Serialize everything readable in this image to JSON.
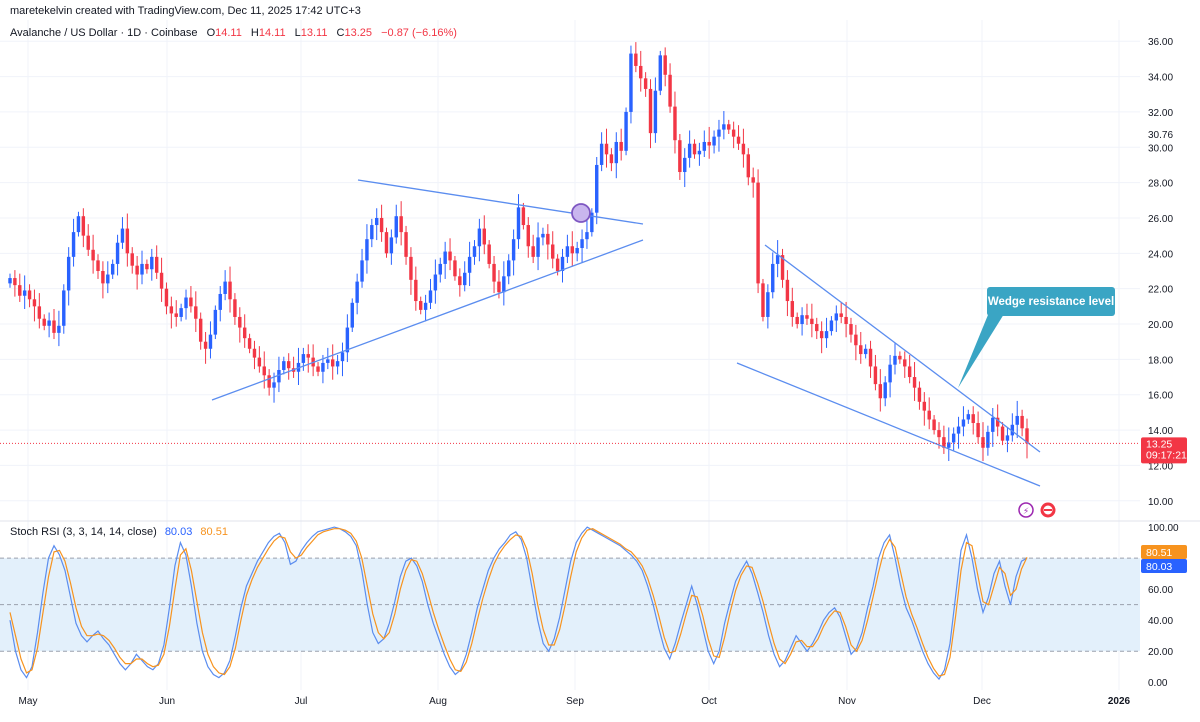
{
  "header": {
    "credit": "maretekelvin created with TradingView.com, Dec 11, 2025 17:42 UTC+3"
  },
  "legend": {
    "symbol": "Avalanche / US Dollar · 1D · Coinbase",
    "o_label": "O",
    "o": "14.11",
    "h_label": "H",
    "h": "14.11",
    "l_label": "L",
    "l": "13.11",
    "c_label": "C",
    "c": "13.25",
    "change": "−0.87 (−6.16%)"
  },
  "price_badge": {
    "price": "13.25",
    "countdown": "09:17:21"
  },
  "annotation": {
    "text": "Wedge resistance level"
  },
  "stoch_legend": {
    "name": "Stoch RSI (3, 3, 14, 14, close)",
    "k": "80.03",
    "d": "80.51"
  },
  "stoch_badges": {
    "d": "80.51",
    "k": "80.03"
  },
  "colors": {
    "up": "#2962ff",
    "down": "#f23645",
    "k_line": "#5b8def",
    "d_line": "#f7931e",
    "trend": "#5b8def",
    "band": "#e3f0fb",
    "callout": "#3aa5c4"
  },
  "chart_data": [
    {
      "type": "candlestick",
      "title": "Avalanche / US Dollar · 1D · Coinbase",
      "x_tick_labels": [
        "May",
        "Jun",
        "Jul",
        "Aug",
        "Sep",
        "Oct",
        "Nov",
        "Dec",
        "2026"
      ],
      "y_tick_labels": [
        "36.00",
        "34.00",
        "32.00",
        "30.76",
        "30.00",
        "28.00",
        "26.00",
        "24.00",
        "22.00",
        "20.00",
        "18.00",
        "16.00",
        "14.00",
        "12.00",
        "10.00"
      ],
      "ylim": [
        8.8,
        37.2
      ],
      "closes": [
        22.6,
        22.2,
        21.6,
        21.9,
        21.4,
        21.0,
        20.3,
        19.9,
        20.2,
        19.5,
        19.9,
        21.9,
        23.8,
        25.2,
        26.1,
        25.0,
        24.2,
        23.6,
        23.0,
        22.3,
        22.8,
        23.4,
        24.6,
        25.4,
        24.0,
        23.3,
        22.8,
        23.4,
        23.1,
        23.8,
        22.9,
        22.0,
        21.0,
        20.6,
        20.4,
        20.9,
        21.5,
        21.0,
        20.3,
        19.0,
        18.6,
        19.4,
        20.8,
        21.7,
        22.4,
        21.4,
        20.4,
        19.8,
        19.2,
        18.6,
        18.1,
        17.6,
        17.1,
        16.4,
        16.7,
        17.4,
        17.9,
        17.5,
        17.3,
        17.8,
        18.3,
        18.1,
        17.6,
        17.3,
        17.8,
        18.0,
        17.6,
        17.9,
        18.4,
        19.8,
        21.2,
        22.4,
        23.6,
        24.8,
        25.6,
        26.0,
        25.2,
        24.0,
        24.9,
        26.1,
        25.2,
        23.8,
        22.5,
        21.3,
        20.8,
        21.2,
        21.9,
        22.8,
        23.4,
        24.1,
        23.6,
        22.7,
        22.2,
        22.9,
        23.8,
        24.4,
        25.4,
        24.5,
        23.4,
        22.4,
        21.8,
        22.7,
        23.6,
        24.8,
        26.6,
        25.6,
        24.4,
        23.8,
        24.9,
        25.1,
        24.5,
        23.7,
        23.0,
        23.8,
        24.4,
        24.0,
        24.3,
        24.8,
        25.2,
        26.3,
        29.0,
        30.2,
        29.6,
        29.1,
        30.3,
        29.8,
        32.0,
        35.3,
        34.6,
        33.9,
        33.3,
        30.8,
        33.2,
        35.2,
        34.1,
        32.3,
        30.4,
        28.6,
        29.4,
        30.2,
        29.6,
        29.8,
        30.3,
        30.1,
        30.6,
        31.0,
        31.3,
        31.0,
        30.6,
        30.2,
        29.6,
        28.3,
        28.0,
        22.3,
        20.4,
        21.8,
        23.4,
        23.9,
        22.5,
        21.3,
        20.4,
        20.0,
        20.5,
        20.3,
        20.0,
        19.6,
        19.2,
        19.6,
        20.2,
        20.6,
        20.4,
        20.0,
        19.4,
        18.8,
        18.3,
        18.6,
        17.6,
        16.6,
        15.8,
        16.7,
        17.7,
        18.2,
        18.0,
        17.6,
        17.0,
        16.4,
        15.6,
        15.1,
        14.6,
        14.0,
        13.6,
        13.0,
        13.3,
        13.8,
        14.2,
        14.6,
        14.9,
        14.4,
        13.6,
        13.0,
        13.9,
        14.7,
        14.2,
        13.4,
        13.7,
        14.3,
        14.8,
        14.1,
        13.25
      ]
    },
    {
      "type": "line",
      "title": "Stoch RSI (3, 3, 14, 14, close)",
      "y_tick_labels": [
        "100.00",
        "80.00",
        "60.00",
        "40.00",
        "20.00",
        "0.00"
      ],
      "ylim": [
        -5,
        102
      ],
      "band": [
        20,
        80
      ],
      "series": [
        {
          "name": "%K",
          "last": 80.03,
          "values": [
            40,
            20,
            8,
            3,
            10,
            32,
            58,
            80,
            88,
            82,
            72,
            55,
            38,
            30,
            26,
            30,
            33,
            28,
            24,
            18,
            12,
            8,
            12,
            18,
            14,
            10,
            8,
            12,
            24,
            48,
            75,
            90,
            82,
            62,
            38,
            20,
            10,
            5,
            3,
            6,
            14,
            30,
            48,
            62,
            70,
            78,
            84,
            90,
            94,
            96,
            90,
            76,
            78,
            85,
            90,
            94,
            97,
            98,
            99,
            100,
            99,
            97,
            94,
            88,
            72,
            50,
            32,
            25,
            28,
            38,
            52,
            68,
            78,
            80,
            75,
            65,
            50,
            38,
            28,
            18,
            10,
            5,
            8,
            18,
            32,
            48,
            60,
            72,
            80,
            86,
            90,
            95,
            97,
            92,
            80,
            60,
            40,
            25,
            20,
            28,
            42,
            60,
            78,
            90,
            96,
            100,
            98,
            96,
            94,
            92,
            90,
            88,
            85,
            82,
            78,
            72,
            62,
            50,
            35,
            22,
            15,
            25,
            38,
            50,
            62,
            50,
            35,
            20,
            12,
            20,
            38,
            52,
            65,
            72,
            78,
            70,
            58,
            45,
            30,
            18,
            10,
            14,
            22,
            30,
            25,
            20,
            25,
            32,
            40,
            45,
            48,
            42,
            30,
            18,
            22,
            32,
            48,
            62,
            80,
            90,
            95,
            80,
            62,
            48,
            40,
            30,
            20,
            12,
            6,
            2,
            8,
            25,
            55,
            85,
            95,
            80,
            60,
            45,
            55,
            70,
            78,
            62,
            50,
            68,
            78,
            80.03
          ]
        },
        {
          "name": "%D",
          "last": 80.51,
          "values": [
            45,
            30,
            15,
            6,
            8,
            22,
            45,
            68,
            84,
            85,
            78,
            64,
            48,
            36,
            30,
            30,
            31,
            30,
            27,
            22,
            16,
            12,
            12,
            15,
            15,
            12,
            10,
            11,
            18,
            36,
            60,
            82,
            86,
            72,
            52,
            32,
            18,
            10,
            6,
            5,
            10,
            22,
            40,
            56,
            66,
            74,
            80,
            86,
            91,
            94,
            93,
            84,
            80,
            82,
            87,
            91,
            95,
            97,
            98,
            99,
            99,
            98,
            96,
            91,
            80,
            62,
            44,
            32,
            28,
            32,
            44,
            60,
            72,
            79,
            78,
            70,
            58,
            45,
            34,
            24,
            15,
            8,
            7,
            13,
            25,
            40,
            54,
            66,
            76,
            83,
            88,
            92,
            95,
            94,
            86,
            70,
            50,
            34,
            24,
            24,
            34,
            50,
            68,
            84,
            93,
            98,
            99,
            97,
            95,
            93,
            91,
            89,
            86,
            84,
            80,
            75,
            67,
            56,
            43,
            29,
            19,
            20,
            31,
            44,
            56,
            55,
            43,
            28,
            17,
            16,
            29,
            45,
            59,
            69,
            75,
            74,
            64,
            52,
            38,
            25,
            15,
            12,
            18,
            26,
            27,
            23,
            23,
            28,
            36,
            42,
            46,
            45,
            36,
            24,
            20,
            27,
            40,
            55,
            71,
            85,
            92,
            87,
            71,
            55,
            44,
            35,
            25,
            16,
            9,
            4,
            5,
            16,
            42,
            72,
            90,
            88,
            70,
            52,
            50,
            62,
            74,
            70,
            56,
            60,
            73,
            80.51
          ]
        }
      ]
    }
  ]
}
